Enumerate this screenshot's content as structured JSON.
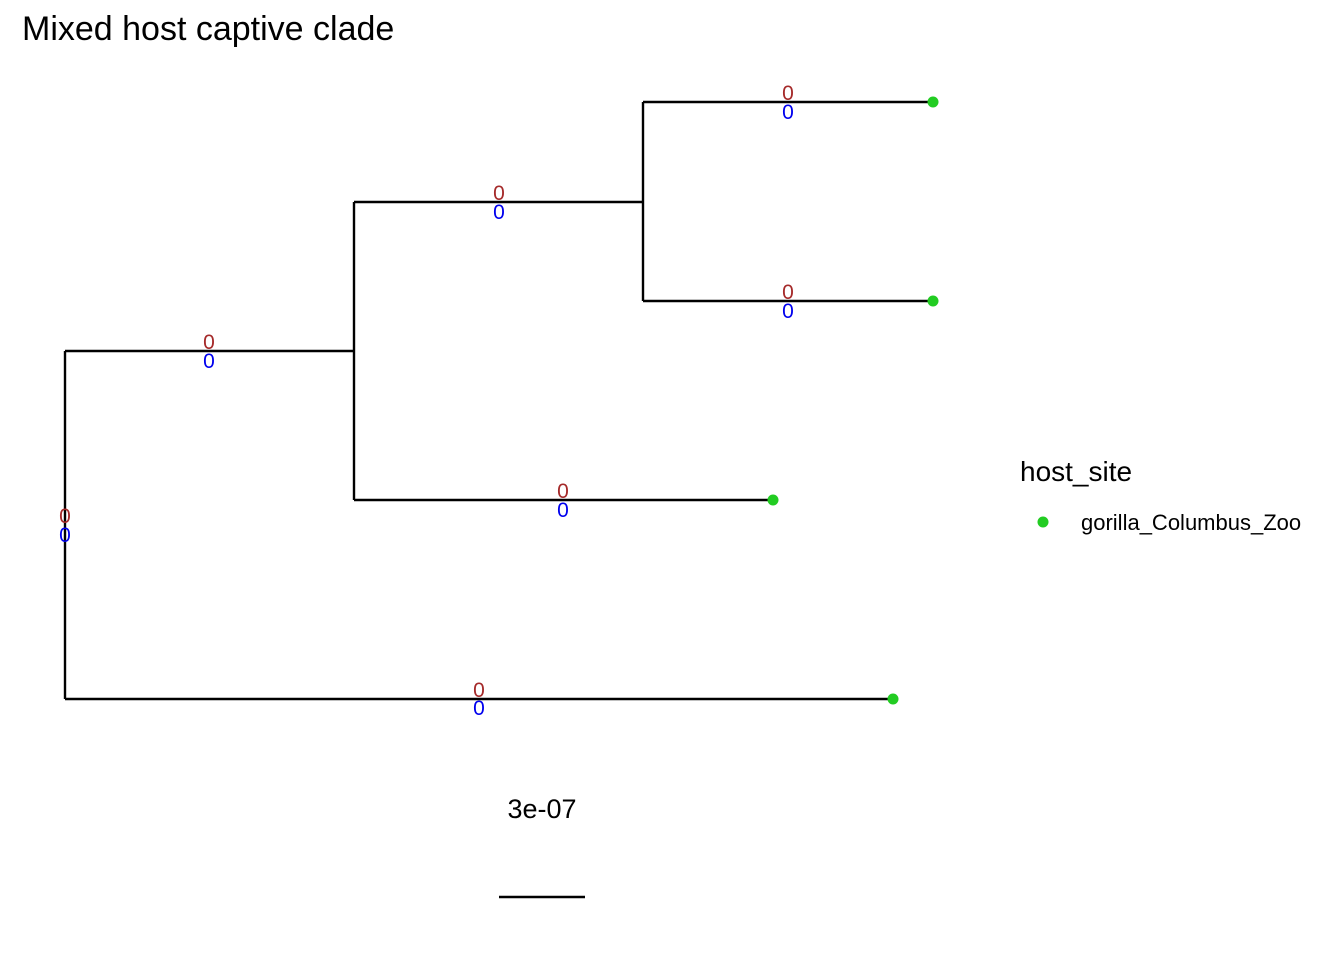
{
  "title": "Mixed host captive clade",
  "colors": {
    "branch": "#000000",
    "label_top": "#a52a2a",
    "label_bottom": "#0000ee",
    "tip": "#22cc22"
  },
  "branch_labels": [
    {
      "id": "root-edge",
      "top": "0",
      "bottom": "0"
    },
    {
      "id": "upper-clade",
      "top": "0",
      "bottom": "0"
    },
    {
      "id": "inner-clade",
      "top": "0",
      "bottom": "0"
    },
    {
      "id": "tip-1",
      "top": "0",
      "bottom": "0"
    },
    {
      "id": "tip-2",
      "top": "0",
      "bottom": "0"
    },
    {
      "id": "tip-3",
      "top": "0",
      "bottom": "0"
    },
    {
      "id": "tip-4",
      "top": "0",
      "bottom": "0"
    }
  ],
  "legend": {
    "title": "host_site",
    "items": [
      {
        "label": "gorilla_Columbus_Zoo",
        "color": "#22cc22"
      }
    ]
  },
  "scale_bar": {
    "label": "3e-07"
  }
}
